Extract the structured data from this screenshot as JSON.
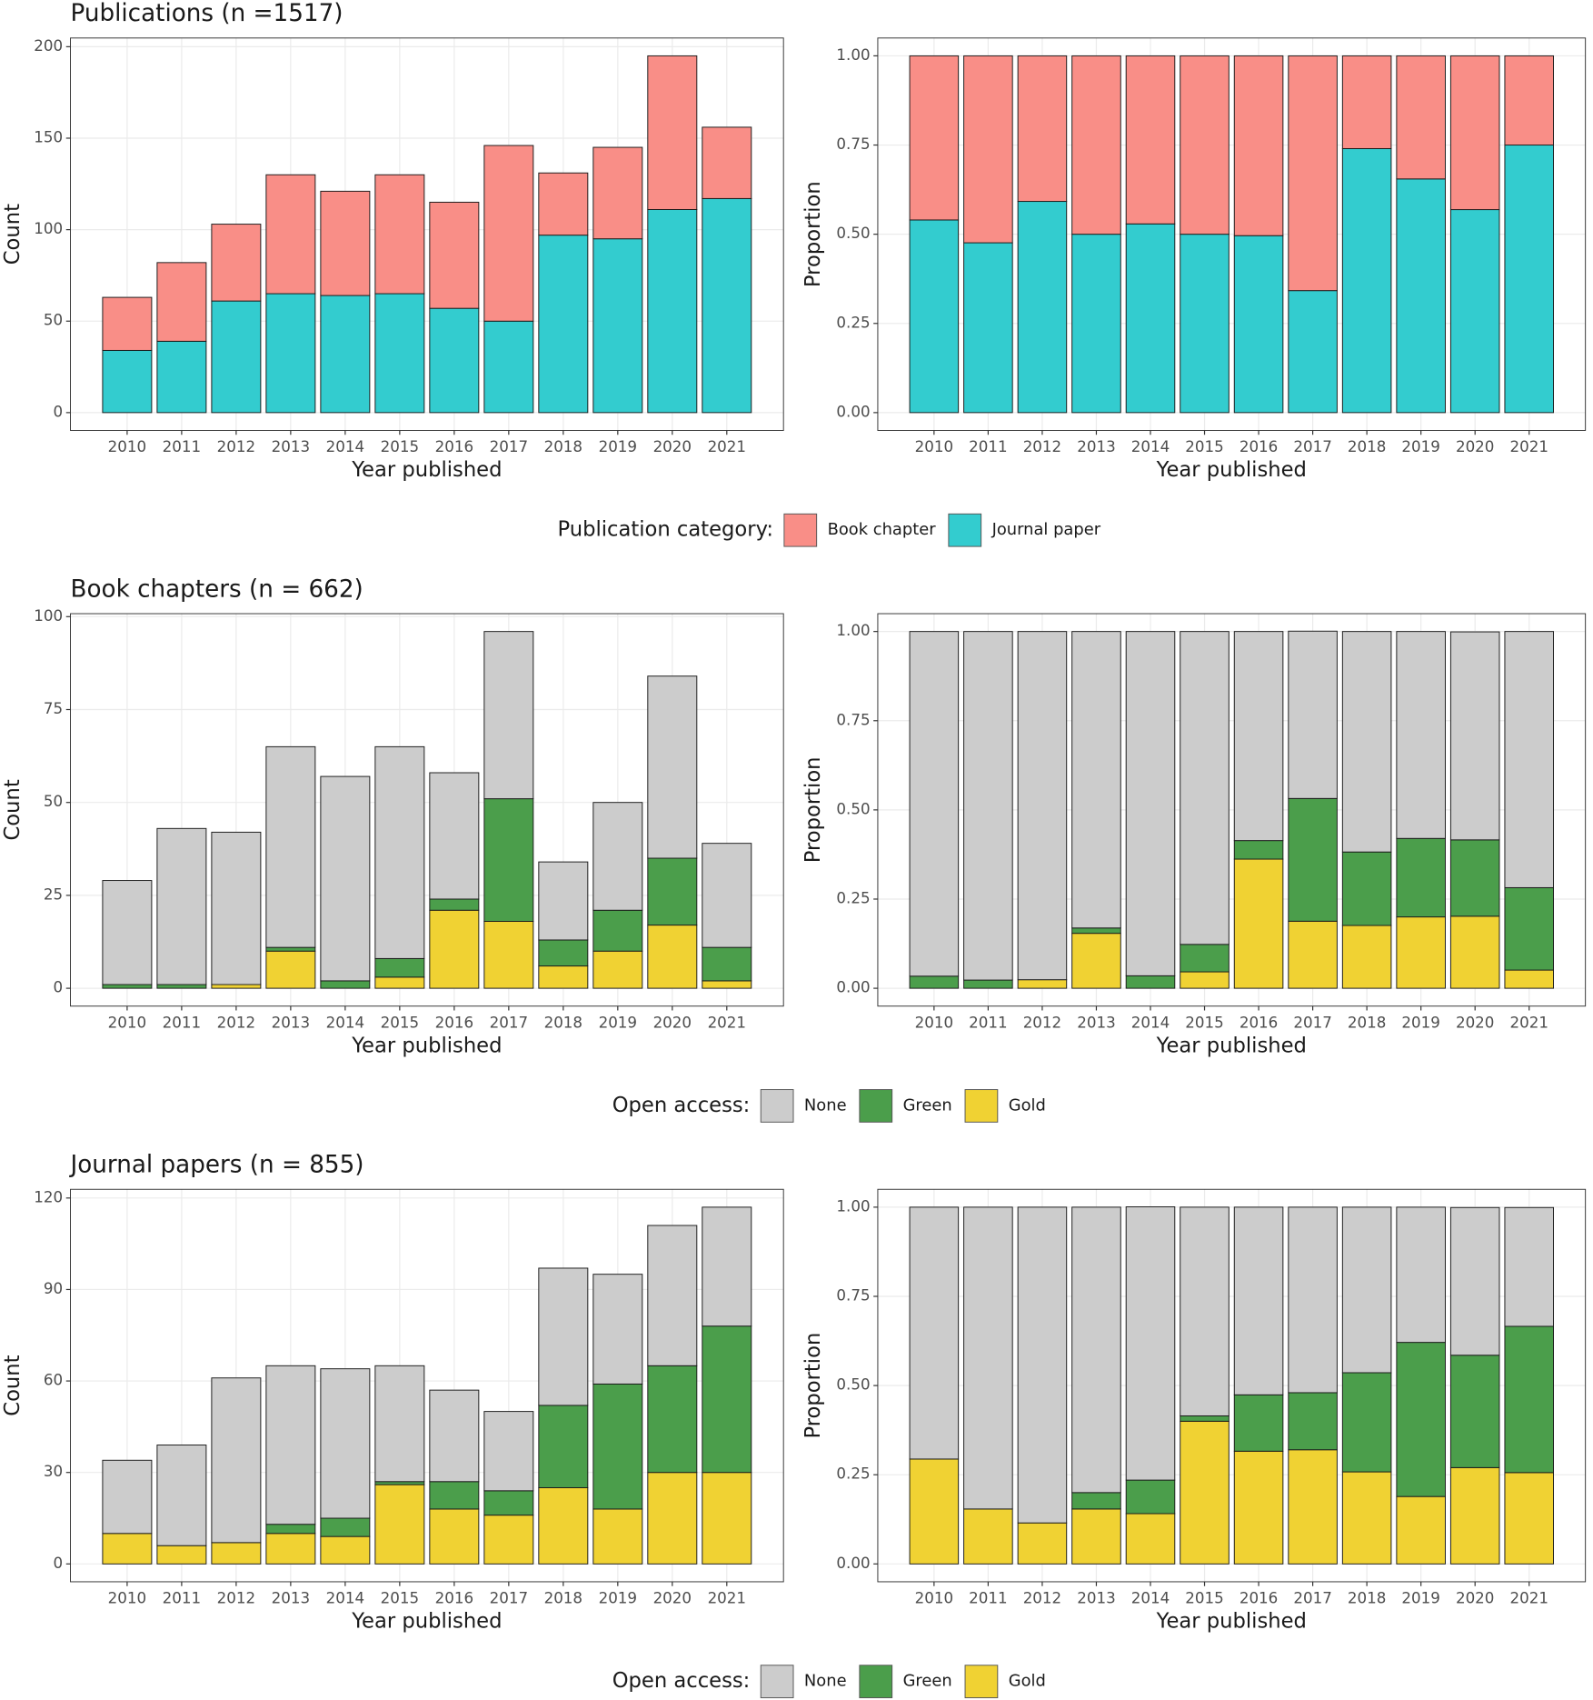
{
  "chart_data": [
    {
      "type": "bar",
      "stacked": true,
      "grid": true,
      "title": "Publications (n =1517)",
      "xlabel": "Year published",
      "ylabel": "Count",
      "legend_title": "Publication category:",
      "categories": [
        "2010",
        "2011",
        "2012",
        "2013",
        "2014",
        "2015",
        "2016",
        "2017",
        "2018",
        "2019",
        "2020",
        "2021"
      ],
      "series": [
        {
          "name": "Book chapter",
          "color": "#f98e87",
          "values": [
            29,
            43,
            42,
            65,
            57,
            65,
            58,
            96,
            34,
            50,
            84,
            39
          ]
        },
        {
          "name": "Journal paper",
          "color": "#33cccf",
          "values": [
            34,
            39,
            61,
            65,
            64,
            65,
            57,
            50,
            97,
            95,
            111,
            117
          ]
        }
      ],
      "ylim": [
        -9.75,
        204.75
      ],
      "yticks": [
        0,
        50,
        100,
        150,
        200
      ]
    },
    {
      "type": "bar",
      "stacked": true,
      "grid": true,
      "xlabel": "Year published",
      "ylabel": "Proportion",
      "categories": [
        "2010",
        "2011",
        "2012",
        "2013",
        "2014",
        "2015",
        "2016",
        "2017",
        "2018",
        "2019",
        "2020",
        "2021"
      ],
      "series": [
        {
          "color": "#f98e87",
          "values": [
            0.46,
            0.524,
            0.408,
            0.5,
            0.471,
            0.5,
            0.504,
            0.658,
            0.26,
            0.345,
            0.431,
            0.25
          ]
        },
        {
          "color": "#33cccf",
          "values": [
            0.54,
            0.476,
            0.592,
            0.5,
            0.529,
            0.5,
            0.496,
            0.342,
            0.74,
            0.655,
            0.569,
            0.75
          ]
        }
      ],
      "ylim": [
        -0.05,
        1.05
      ],
      "yticks": [
        {
          "value": 0,
          "label": "0.00"
        },
        {
          "value": 0.25,
          "label": "0.25"
        },
        {
          "value": 0.5,
          "label": "0.50"
        },
        {
          "value": 0.75,
          "label": "0.75"
        },
        {
          "value": 1,
          "label": "1.00"
        }
      ]
    },
    {
      "type": "bar",
      "stacked": true,
      "grid": true,
      "title": "Book chapters (n = 662)",
      "xlabel": "Year published",
      "ylabel": "Count",
      "legend_title": "Open access:",
      "categories": [
        "2010",
        "2011",
        "2012",
        "2013",
        "2014",
        "2015",
        "2016",
        "2017",
        "2018",
        "2019",
        "2020",
        "2021"
      ],
      "series": [
        {
          "name": "None",
          "color": "#cccccc",
          "values": [
            28,
            42,
            41,
            54,
            55,
            57,
            34,
            45,
            21,
            29,
            49,
            28
          ]
        },
        {
          "name": "Green",
          "color": "#4b9e4b",
          "values": [
            1,
            1,
            0,
            1,
            2,
            5,
            3,
            33,
            7,
            11,
            18,
            9
          ]
        },
        {
          "name": "Gold",
          "color": "#f0d233",
          "values": [
            0,
            0,
            1,
            10,
            0,
            3,
            21,
            18,
            6,
            10,
            17,
            2
          ]
        }
      ],
      "ylim": [
        -4.8,
        100.8
      ],
      "yticks": [
        0,
        25,
        50,
        75,
        100
      ]
    },
    {
      "type": "bar",
      "stacked": true,
      "grid": true,
      "xlabel": "Year published",
      "ylabel": "Proportion",
      "categories": [
        "2010",
        "2011",
        "2012",
        "2013",
        "2014",
        "2015",
        "2016",
        "2017",
        "2018",
        "2019",
        "2020",
        "2021"
      ],
      "series": [
        {
          "color": "#cccccc",
          "values": [
            0.966,
            0.977,
            0.976,
            0.831,
            0.965,
            0.877,
            0.586,
            0.469,
            0.618,
            0.58,
            0.583,
            0.718
          ]
        },
        {
          "color": "#4b9e4b",
          "values": [
            0.034,
            0.023,
            0,
            0.015,
            0.035,
            0.077,
            0.052,
            0.344,
            0.206,
            0.22,
            0.214,
            0.231
          ]
        },
        {
          "color": "#f0d233",
          "values": [
            0,
            0,
            0.024,
            0.154,
            0,
            0.046,
            0.362,
            0.188,
            0.176,
            0.2,
            0.202,
            0.051
          ]
        }
      ],
      "ylim": [
        -0.05,
        1.05
      ],
      "yticks": [
        {
          "value": 0,
          "label": "0.00"
        },
        {
          "value": 0.25,
          "label": "0.25"
        },
        {
          "value": 0.5,
          "label": "0.50"
        },
        {
          "value": 0.75,
          "label": "0.75"
        },
        {
          "value": 1,
          "label": "1.00"
        }
      ]
    },
    {
      "type": "bar",
      "stacked": true,
      "grid": true,
      "title": "Journal papers (n = 855)",
      "xlabel": "Year published",
      "ylabel": "Count",
      "legend_title": "Open access:",
      "categories": [
        "2010",
        "2011",
        "2012",
        "2013",
        "2014",
        "2015",
        "2016",
        "2017",
        "2018",
        "2019",
        "2020",
        "2021"
      ],
      "series": [
        {
          "name": "None",
          "color": "#cccccc",
          "values": [
            24,
            33,
            54,
            52,
            49,
            38,
            30,
            26,
            45,
            36,
            46,
            39
          ]
        },
        {
          "name": "Green",
          "color": "#4b9e4b",
          "values": [
            0,
            0,
            0,
            3,
            6,
            1,
            9,
            8,
            27,
            41,
            35,
            48
          ]
        },
        {
          "name": "Gold",
          "color": "#f0d233",
          "values": [
            10,
            6,
            7,
            10,
            9,
            26,
            18,
            16,
            25,
            18,
            30,
            30
          ]
        }
      ],
      "ylim": [
        -5.85,
        122.85
      ],
      "yticks": [
        0,
        30,
        60,
        90,
        120
      ]
    },
    {
      "type": "bar",
      "stacked": true,
      "grid": true,
      "xlabel": "Year published",
      "ylabel": "Proportion",
      "categories": [
        "2010",
        "2011",
        "2012",
        "2013",
        "2014",
        "2015",
        "2016",
        "2017",
        "2018",
        "2019",
        "2020",
        "2021"
      ],
      "series": [
        {
          "color": "#cccccc",
          "values": [
            0.706,
            0.846,
            0.885,
            0.8,
            0.766,
            0.585,
            0.526,
            0.52,
            0.464,
            0.379,
            0.414,
            0.333
          ]
        },
        {
          "color": "#4b9e4b",
          "values": [
            0,
            0,
            0,
            0.046,
            0.094,
            0.015,
            0.158,
            0.16,
            0.278,
            0.432,
            0.315,
            0.41
          ]
        },
        {
          "color": "#f0d233",
          "values": [
            0.294,
            0.154,
            0.115,
            0.154,
            0.141,
            0.4,
            0.316,
            0.32,
            0.258,
            0.189,
            0.27,
            0.256
          ]
        }
      ],
      "ylim": [
        -0.05,
        1.05
      ],
      "yticks": [
        {
          "value": 0,
          "label": "0.00"
        },
        {
          "value": 0.25,
          "label": "0.25"
        },
        {
          "value": 0.5,
          "label": "0.50"
        },
        {
          "value": 0.75,
          "label": "0.75"
        },
        {
          "value": 1,
          "label": "1.00"
        }
      ]
    }
  ]
}
